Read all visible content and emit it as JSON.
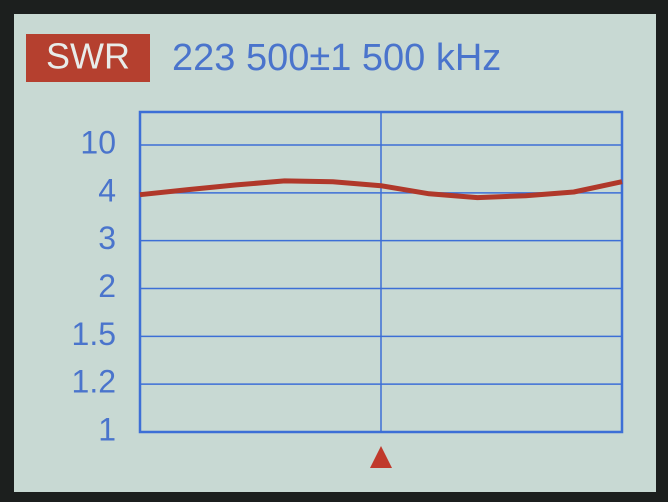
{
  "chart_data": {
    "type": "line",
    "badge": "SWR",
    "title": "223 500±1 500 kHz",
    "x": [
      222000,
      222300,
      222600,
      222900,
      223200,
      223500,
      223800,
      224100,
      224400,
      224700,
      225000
    ],
    "values": [
      3.96,
      4.4,
      5.0,
      5.5,
      5.4,
      4.9,
      3.98,
      3.9,
      3.94,
      4.1,
      5.4
    ],
    "color": "#b0382a",
    "xlim": [
      222000,
      225000
    ],
    "marker": 223500,
    "yticks": [
      1,
      1.2,
      1.5,
      2,
      3,
      4,
      10
    ],
    "grid": true
  }
}
